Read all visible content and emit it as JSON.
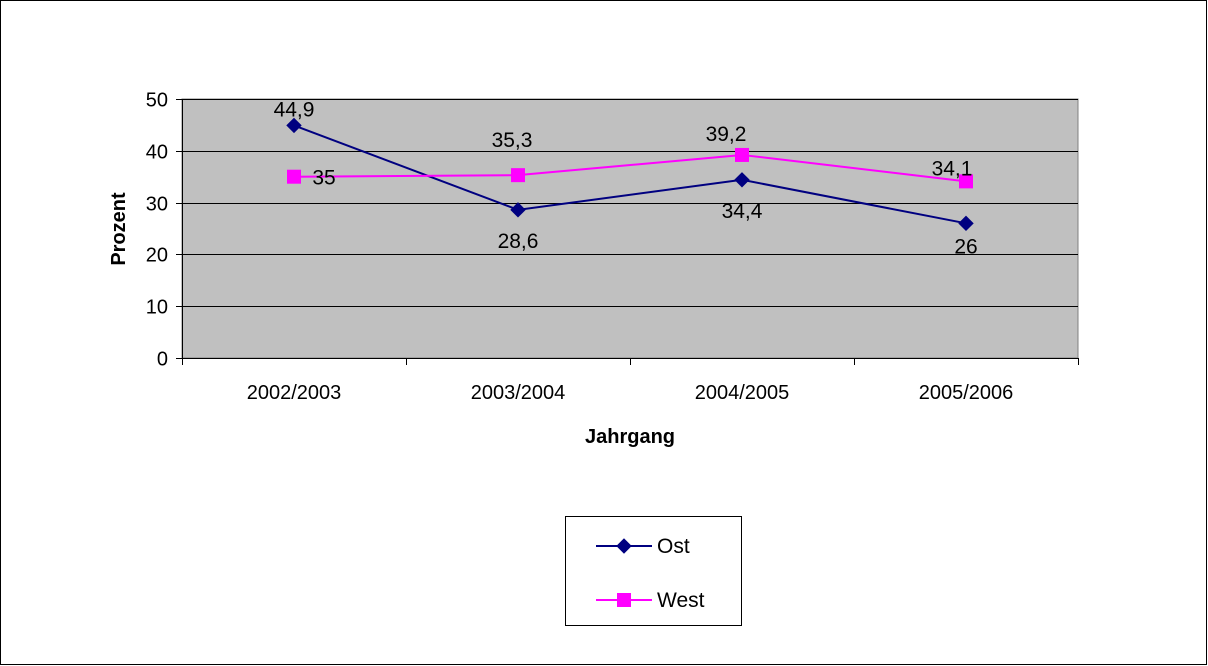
{
  "chart_data": {
    "type": "line",
    "title": "",
    "xlabel": "Jahrgang",
    "ylabel": "Prozent",
    "categories": [
      "2002/2003",
      "2003/2004",
      "2004/2005",
      "2005/2006"
    ],
    "ylim": [
      0,
      50
    ],
    "yticks": [
      0,
      10,
      20,
      30,
      40,
      50
    ],
    "grid": true,
    "plot_background": "#c0c0c0",
    "legend_position": "bottom",
    "series": [
      {
        "name": "Ost",
        "values": [
          44.9,
          28.6,
          34.4,
          26
        ],
        "labels": [
          "44,9",
          "28,6",
          "34,4",
          "26"
        ],
        "color": "#000080",
        "marker": "diamond"
      },
      {
        "name": "West",
        "values": [
          35,
          35.3,
          39.2,
          34.1
        ],
        "labels": [
          "35",
          "35,3",
          "39,2",
          "34,1"
        ],
        "color": "#ff00ff",
        "marker": "square"
      }
    ]
  }
}
